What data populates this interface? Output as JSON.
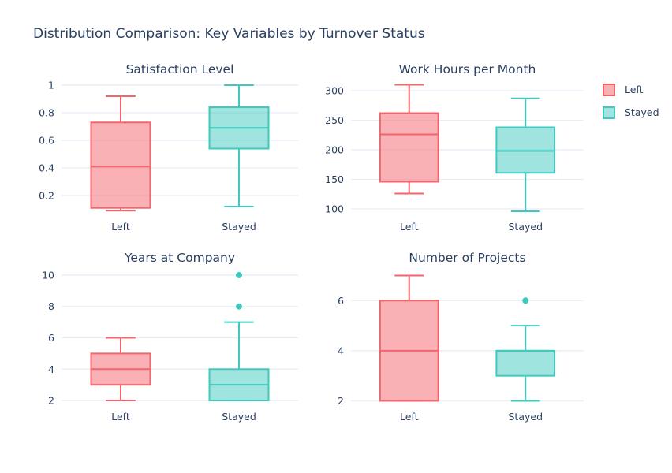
{
  "title": "Distribution Comparison: Key Variables by Turnover Status",
  "style": {
    "background": "#ffffff",
    "text_color": "#2a3f5f",
    "grid_color": "#e8eef6"
  },
  "palette": {
    "left": {
      "stroke": "#f4646c",
      "fill": "rgba(244,100,108,0.5)"
    },
    "stayed": {
      "stroke": "#40c9be",
      "fill": "rgba(64,201,190,0.5)"
    }
  },
  "legend": {
    "items": [
      {
        "label": "Left",
        "key": "left"
      },
      {
        "label": "Stayed",
        "key": "stayed"
      }
    ]
  },
  "chart_data": [
    {
      "type": "box",
      "title": "Satisfaction Level",
      "categories": [
        "Left",
        "Stayed"
      ],
      "yticks": [
        0.2,
        0.4,
        0.6,
        0.8,
        1
      ],
      "ylim": [
        0.034,
        1.046
      ],
      "series": [
        {
          "name": "Left",
          "key": "left",
          "low": 0.09,
          "q1": 0.11,
          "median": 0.41,
          "q3": 0.73,
          "high": 0.92,
          "outliers": []
        },
        {
          "name": "Stayed",
          "key": "stayed",
          "low": 0.12,
          "q1": 0.54,
          "median": 0.69,
          "q3": 0.84,
          "high": 1.0,
          "outliers": []
        }
      ]
    },
    {
      "type": "box",
      "title": "Work Hours per Month",
      "categories": [
        "Left",
        "Stayed"
      ],
      "yticks": [
        100,
        150,
        200,
        250,
        300
      ],
      "ylim": [
        84,
        320
      ],
      "series": [
        {
          "name": "Left",
          "key": "left",
          "low": 126,
          "q1": 146,
          "median": 226,
          "q3": 262,
          "high": 310,
          "outliers": []
        },
        {
          "name": "Stayed",
          "key": "stayed",
          "low": 96,
          "q1": 161,
          "median": 198,
          "q3": 238,
          "high": 287,
          "outliers": []
        }
      ]
    },
    {
      "type": "box",
      "title": "Years at Company",
      "categories": [
        "Left",
        "Stayed"
      ],
      "yticks": [
        2,
        4,
        6,
        8,
        10
      ],
      "ylim": [
        1.5,
        10.5
      ],
      "series": [
        {
          "name": "Left",
          "key": "left",
          "low": 2,
          "q1": 3,
          "median": 4,
          "q3": 5,
          "high": 6,
          "outliers": []
        },
        {
          "name": "Stayed",
          "key": "stayed",
          "low": 2,
          "q1": 2,
          "median": 3,
          "q3": 4,
          "high": 7,
          "outliers": [
            8,
            10
          ]
        }
      ]
    },
    {
      "type": "box",
      "title": "Number of Projects",
      "categories": [
        "Left",
        "Stayed"
      ],
      "yticks": [
        2,
        4,
        6
      ],
      "ylim": [
        1.7,
        7.33
      ],
      "series": [
        {
          "name": "Left",
          "key": "left",
          "low": 2,
          "q1": 2,
          "median": 4,
          "q3": 6,
          "high": 7,
          "outliers": []
        },
        {
          "name": "Stayed",
          "key": "stayed",
          "low": 2,
          "q1": 3,
          "median": 4,
          "q3": 4,
          "high": 5,
          "outliers": [
            6
          ]
        }
      ]
    }
  ]
}
